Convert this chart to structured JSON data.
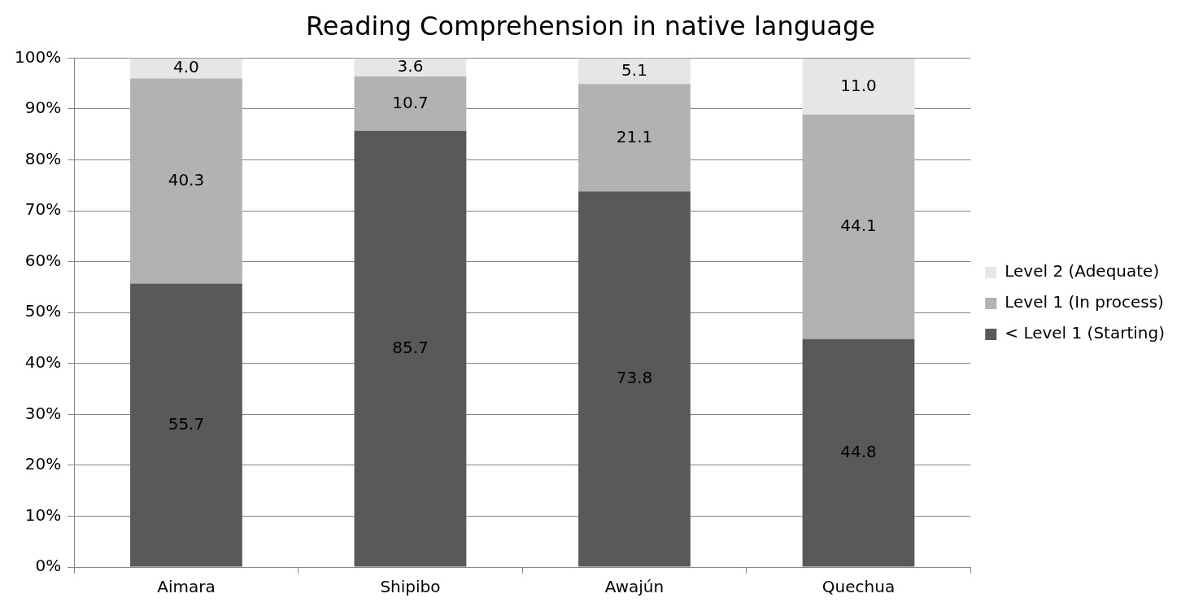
{
  "chart_data": {
    "type": "bar",
    "title": "Reading Comprehension in native language",
    "categories": [
      "Aimara",
      "Shipibo",
      "Awajún",
      "Quechua"
    ],
    "stacked": true,
    "series": [
      {
        "name": "< Level 1 (Starting)",
        "color": "#595959",
        "values": [
          55.7,
          85.7,
          73.8,
          44.8
        ],
        "value_labels": [
          "55.7",
          "85.7",
          "73.8",
          "44.8"
        ]
      },
      {
        "name": "Level 1 (In process)",
        "color": "#b2b2b2",
        "values": [
          40.3,
          10.7,
          21.1,
          44.1
        ],
        "value_labels": [
          "40.3",
          "10.7",
          "21.1",
          "44.1"
        ]
      },
      {
        "name": "Level 2 (Adequate)",
        "color": "#e6e6e6",
        "values": [
          4.0,
          3.6,
          5.1,
          11.0
        ],
        "value_labels": [
          "4.0",
          "3.6",
          "5.1",
          "11.0"
        ]
      }
    ],
    "ylim": [
      0,
      100
    ],
    "yticks": [
      {
        "value": 0,
        "label": "0%"
      },
      {
        "value": 10,
        "label": "10%"
      },
      {
        "value": 20,
        "label": "20%"
      },
      {
        "value": 30,
        "label": "30%"
      },
      {
        "value": 40,
        "label": "40%"
      },
      {
        "value": 50,
        "label": "50%"
      },
      {
        "value": 60,
        "label": "60%"
      },
      {
        "value": 70,
        "label": "70%"
      },
      {
        "value": 80,
        "label": "80%"
      },
      {
        "value": 90,
        "label": "90%"
      },
      {
        "value": 100,
        "label": "100%"
      }
    ],
    "grid": "y",
    "legend": "right"
  }
}
